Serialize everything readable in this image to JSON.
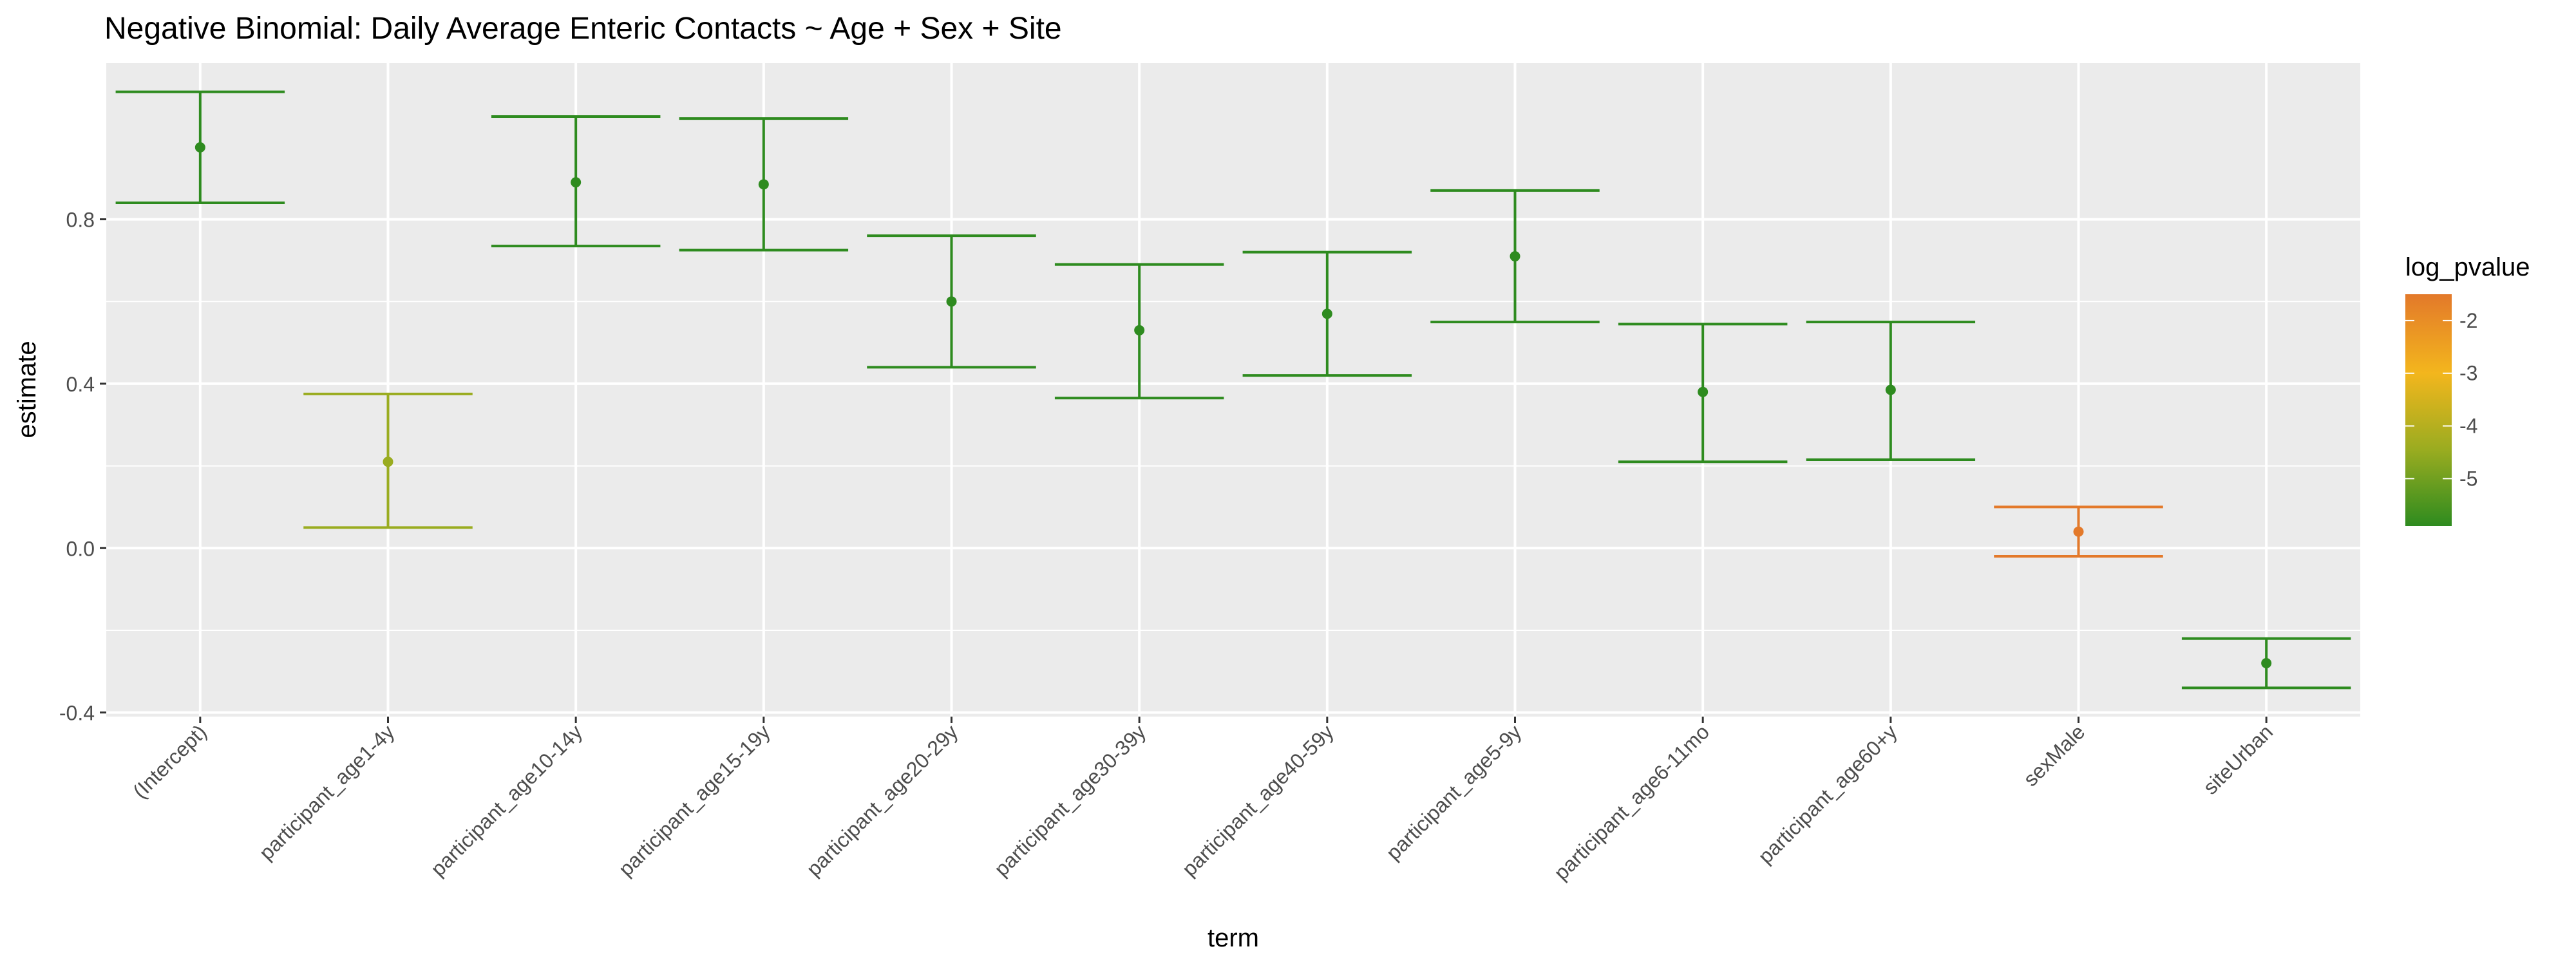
{
  "chart_data": {
    "type": "errorbar",
    "title": "Negative Binomial: Daily Average Enteric Contacts ~ Age + Sex + Site",
    "xlabel": "term",
    "ylabel": "estimate",
    "ylim": [
      -0.41,
      1.18
    ],
    "yticks": [
      -0.4,
      0.0,
      0.4,
      0.8
    ],
    "ytick_labels": [
      "-0.4",
      "0.0",
      "0.4",
      "0.8"
    ],
    "grid": true,
    "legend": {
      "title": "log_pvalue",
      "placement": "right",
      "ticks": [
        -2,
        -3,
        -4,
        -5
      ],
      "tick_labels": [
        "-2",
        "-3",
        "-4",
        "-5"
      ],
      "range": [
        -5.9,
        -1.5
      ],
      "color_stops": [
        "#2e8b1f",
        "#9aac20",
        "#f3b61d",
        "#e3792a"
      ]
    },
    "categories": [
      "(Intercept)",
      "participant_age1-4y",
      "participant_age10-14y",
      "participant_age15-19y",
      "participant_age20-29y",
      "participant_age30-39y",
      "participant_age40-59y",
      "participant_age5-9y",
      "participant_age6-11mo",
      "participant_age60+y",
      "sexMale",
      "siteUrban"
    ],
    "points": [
      {
        "term": "(Intercept)",
        "estimate": 0.975,
        "lower": 0.84,
        "upper": 1.11,
        "log_pvalue": -5.9,
        "color": "#2e8b1f"
      },
      {
        "term": "participant_age1-4y",
        "estimate": 0.21,
        "lower": 0.05,
        "upper": 0.375,
        "log_pvalue": -4.2,
        "color": "#9aac20"
      },
      {
        "term": "participant_age10-14y",
        "estimate": 0.89,
        "lower": 0.735,
        "upper": 1.05,
        "log_pvalue": -5.9,
        "color": "#2e8b1f"
      },
      {
        "term": "participant_age15-19y",
        "estimate": 0.885,
        "lower": 0.725,
        "upper": 1.045,
        "log_pvalue": -5.9,
        "color": "#2e8b1f"
      },
      {
        "term": "participant_age20-29y",
        "estimate": 0.6,
        "lower": 0.44,
        "upper": 0.76,
        "log_pvalue": -5.9,
        "color": "#2e8b1f"
      },
      {
        "term": "participant_age30-39y",
        "estimate": 0.53,
        "lower": 0.365,
        "upper": 0.69,
        "log_pvalue": -5.9,
        "color": "#2e8b1f"
      },
      {
        "term": "participant_age40-59y",
        "estimate": 0.57,
        "lower": 0.42,
        "upper": 0.72,
        "log_pvalue": -5.9,
        "color": "#2e8b1f"
      },
      {
        "term": "participant_age5-9y",
        "estimate": 0.71,
        "lower": 0.55,
        "upper": 0.87,
        "log_pvalue": -5.9,
        "color": "#2e8b1f"
      },
      {
        "term": "participant_age6-11mo",
        "estimate": 0.38,
        "lower": 0.21,
        "upper": 0.545,
        "log_pvalue": -5.9,
        "color": "#2e8b1f"
      },
      {
        "term": "participant_age60+y",
        "estimate": 0.385,
        "lower": 0.215,
        "upper": 0.55,
        "log_pvalue": -5.9,
        "color": "#2e8b1f"
      },
      {
        "term": "sexMale",
        "estimate": 0.04,
        "lower": -0.02,
        "upper": 0.1,
        "log_pvalue": -1.5,
        "color": "#e3792a"
      },
      {
        "term": "siteUrban",
        "estimate": -0.28,
        "lower": -0.34,
        "upper": -0.22,
        "log_pvalue": -5.9,
        "color": "#2e8b1f"
      }
    ]
  }
}
